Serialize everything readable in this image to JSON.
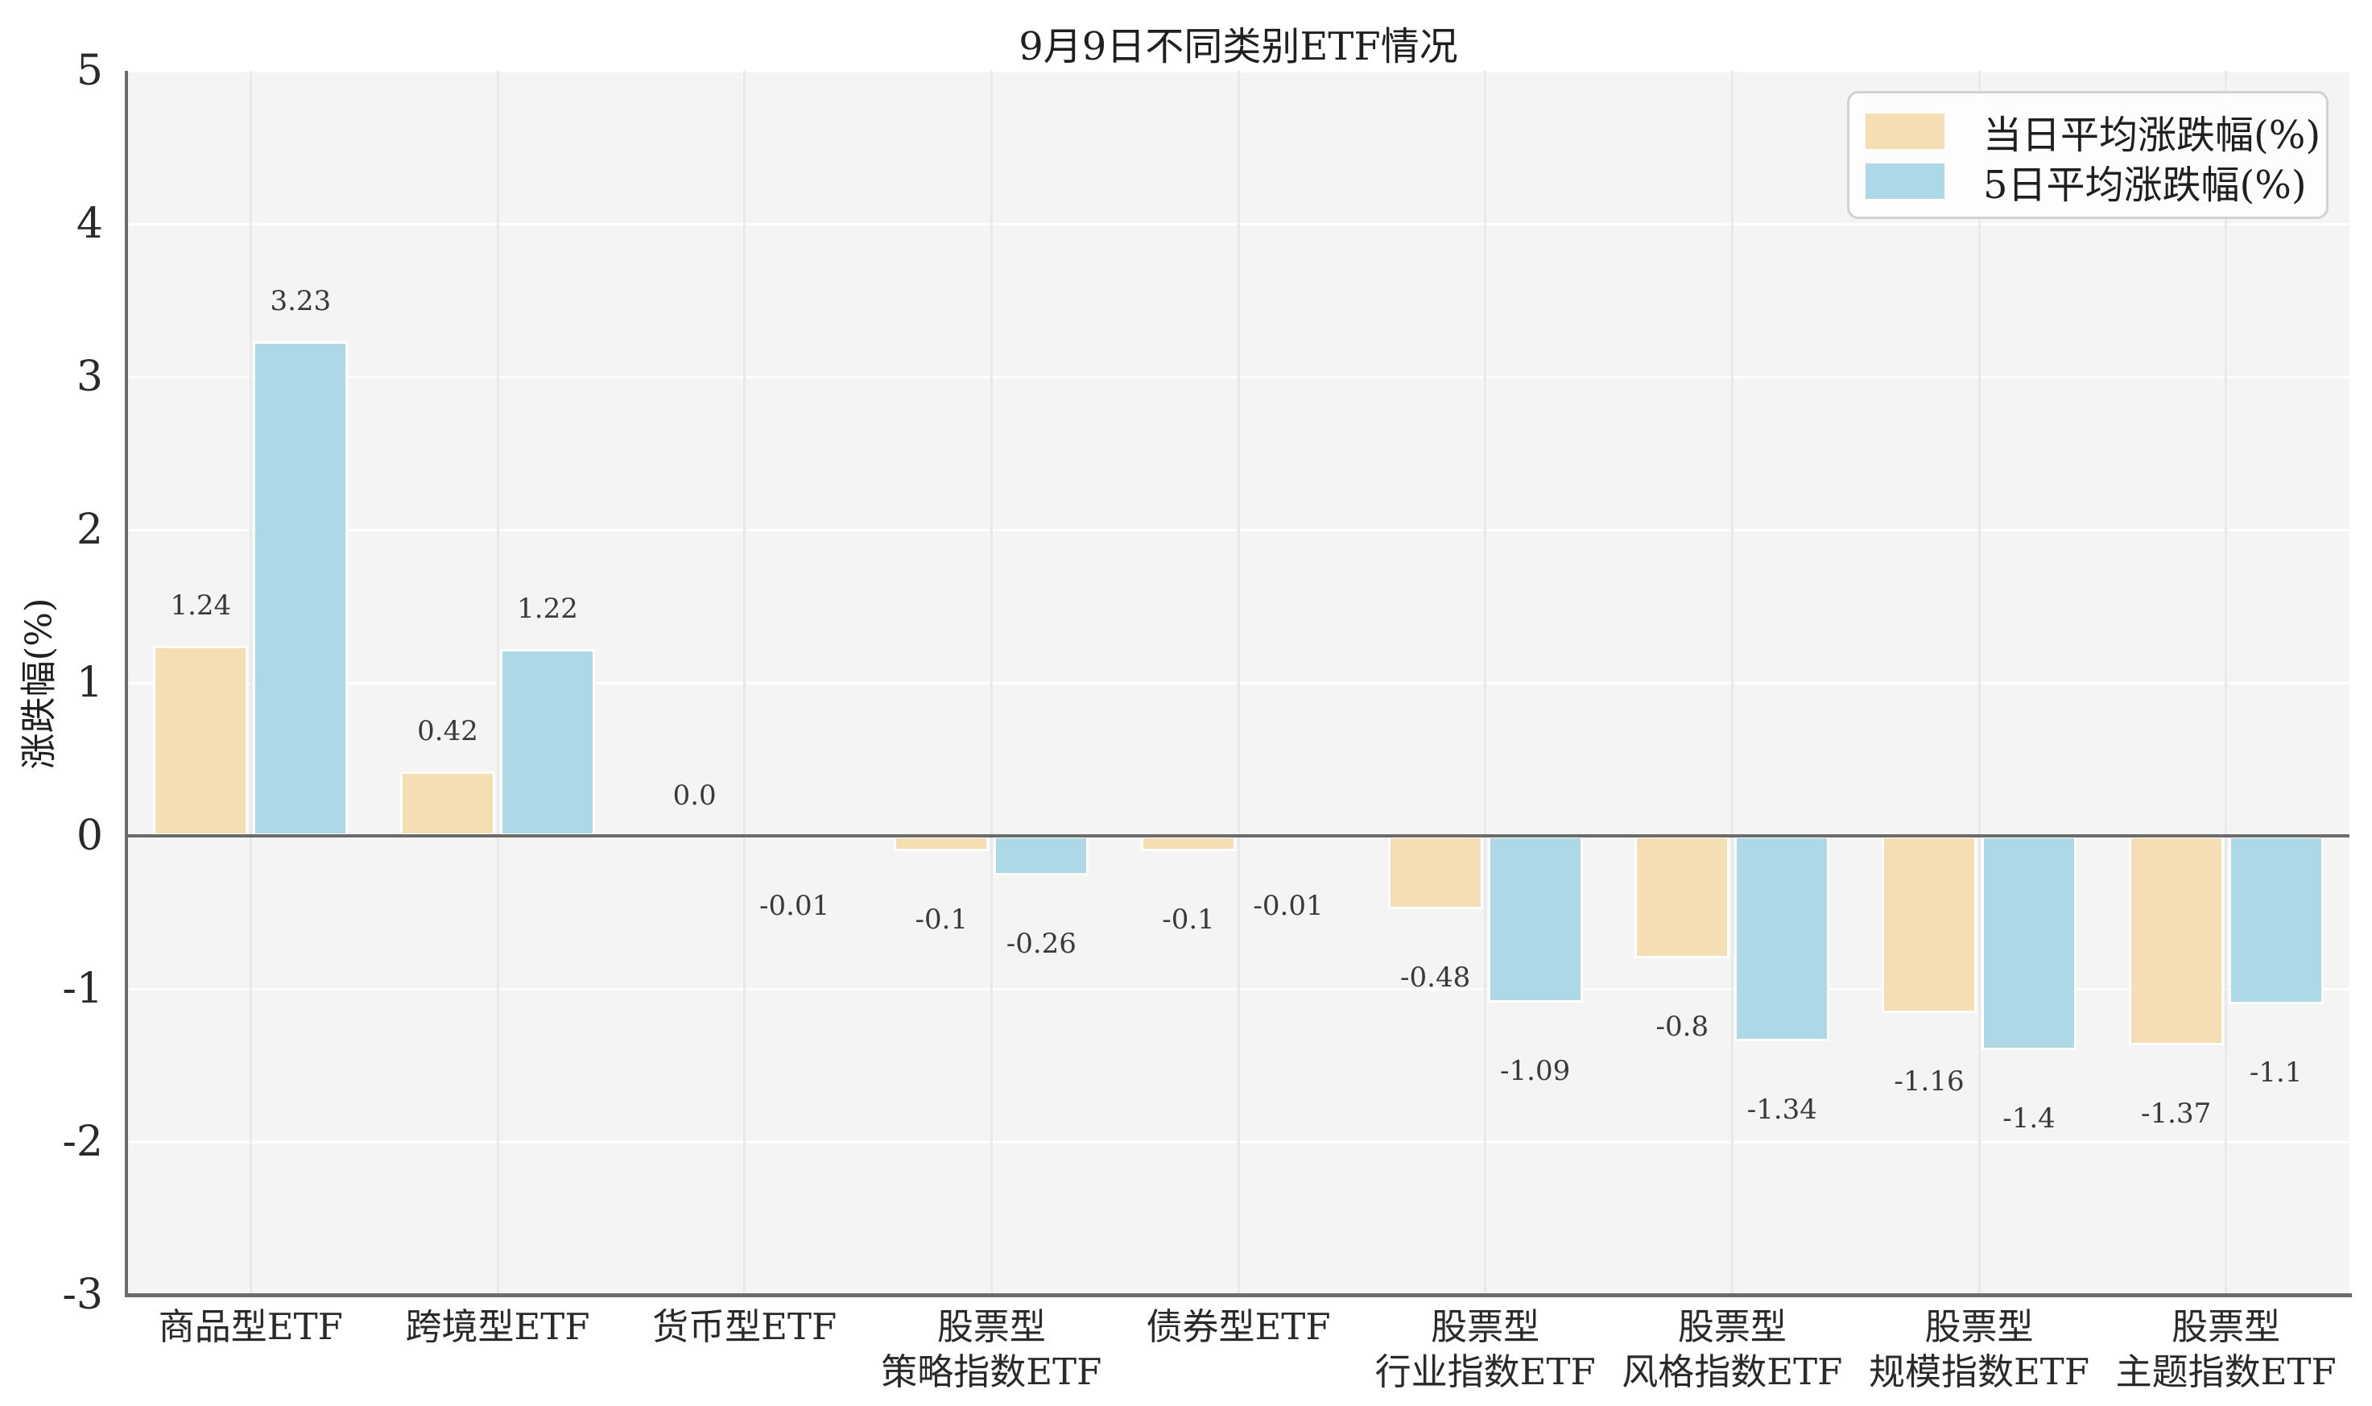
{
  "chart_data": {
    "type": "bar",
    "title": "9月9日不同类别ETF情况",
    "ylabel": "涨跌幅(%)",
    "xlabel": "",
    "ylim": [
      -3,
      5
    ],
    "yticks": [
      5,
      4,
      3,
      2,
      1,
      0,
      -1,
      -2,
      -3
    ],
    "grid": true,
    "legend_position": "upper right",
    "plot_background": "#f4f4f4",
    "categories": [
      "商品型ETF",
      "跨境型ETF",
      "货币型ETF",
      "股票型\n策略指数ETF",
      "债券型ETF",
      "股票型\n行业指数ETF",
      "股票型\n风格指数ETF",
      "股票型\n规模指数ETF",
      "股票型\n主题指数ETF"
    ],
    "series": [
      {
        "name": "当日平均涨跌幅(%)",
        "color": "#F5DEB3",
        "values": [
          1.24,
          0.42,
          0.0,
          -0.1,
          -0.1,
          -0.48,
          -0.8,
          -1.16,
          -1.37
        ],
        "labels": [
          "1.24",
          "0.42",
          "0.0",
          "-0.1",
          "-0.1",
          "-0.48",
          "-0.8",
          "-1.16",
          "-1.37"
        ]
      },
      {
        "name": "5日平均涨跌幅(%)",
        "color": "#ADD8E6",
        "values": [
          3.23,
          1.22,
          -0.01,
          -0.26,
          -0.01,
          -1.09,
          -1.34,
          -1.4,
          -1.1
        ],
        "labels": [
          "3.23",
          "1.22",
          "-0.01",
          "-0.26",
          "-0.01",
          "-1.09",
          "-1.34",
          "-1.4",
          "-1.1"
        ]
      }
    ]
  }
}
